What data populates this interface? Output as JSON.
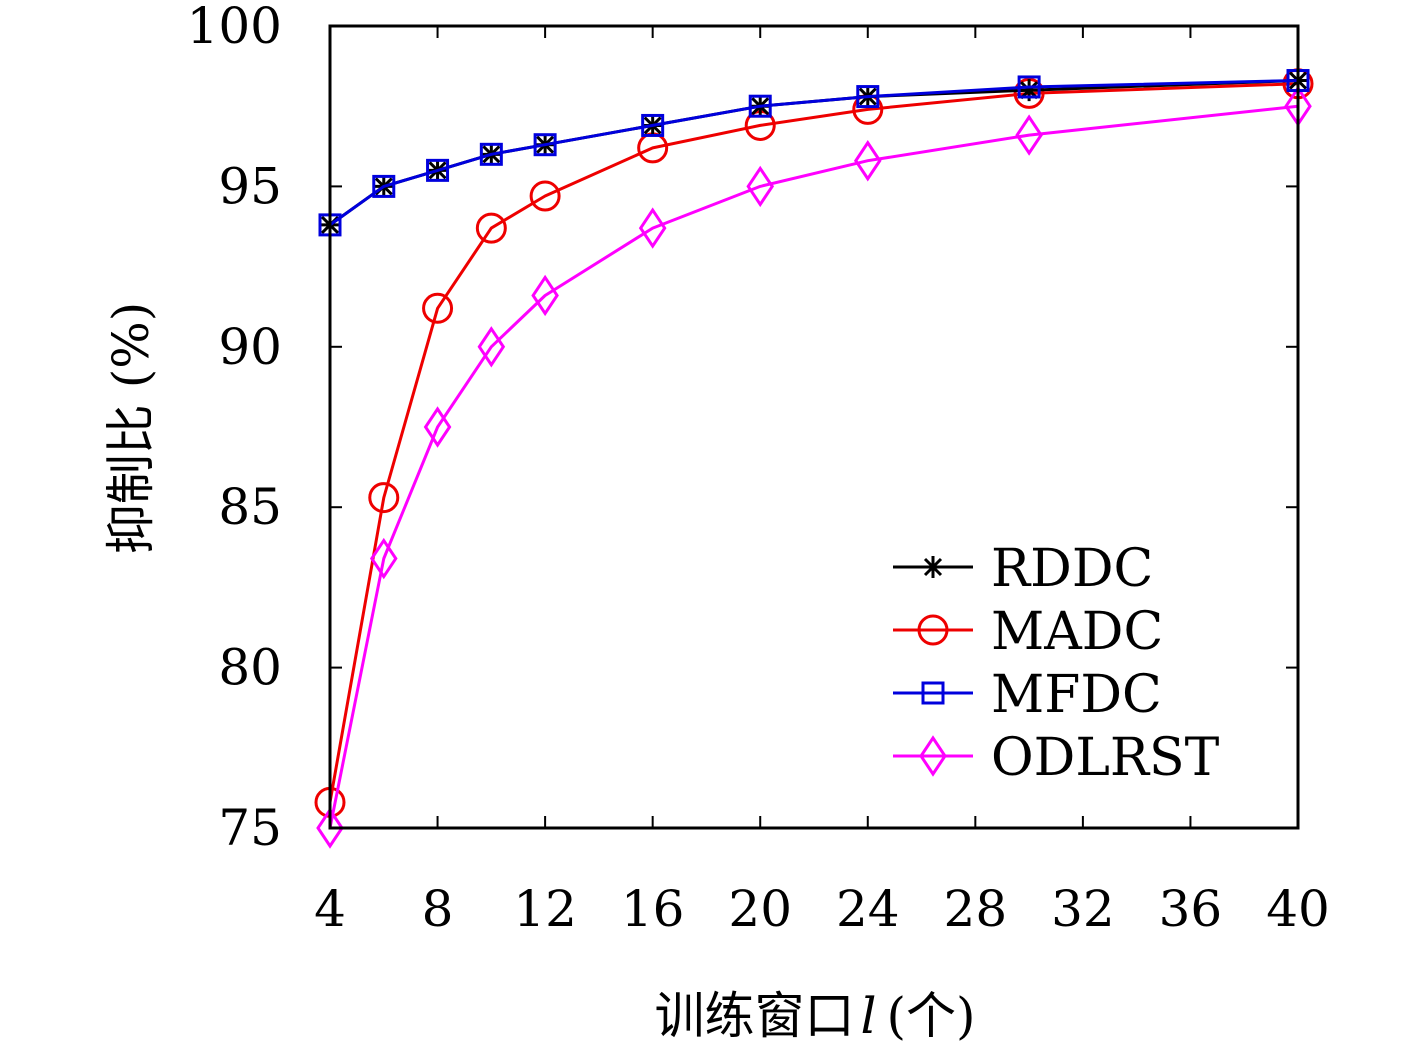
{
  "chart_data": {
    "type": "line",
    "xlabel": "训练窗口",
    "xlabel_var": "l",
    "xlabel_unit": "(个)",
    "ylabel": "抑制比 (%)",
    "xlim": [
      4,
      40
    ],
    "ylim": [
      75,
      100
    ],
    "xticks": [
      4,
      8,
      12,
      16,
      20,
      24,
      28,
      32,
      36,
      40
    ],
    "yticks": [
      75,
      80,
      85,
      90,
      95,
      100
    ],
    "x": [
      4,
      6,
      8,
      10,
      12,
      16,
      20,
      24,
      30,
      40
    ],
    "legend_position": "bottom-right",
    "grid": false,
    "series": [
      {
        "name": "RDDC",
        "color": "#000000",
        "marker": "asterisk",
        "values": [
          93.8,
          95.0,
          95.5,
          96.0,
          96.3,
          96.9,
          97.5,
          97.8,
          98.0,
          98.3
        ]
      },
      {
        "name": "MADC",
        "color": "#ee0000",
        "marker": "circle",
        "values": [
          75.8,
          85.3,
          91.2,
          93.7,
          94.7,
          96.2,
          96.9,
          97.4,
          97.9,
          98.2
        ]
      },
      {
        "name": "MFDC",
        "color": "#0000dd",
        "marker": "square",
        "values": [
          93.8,
          95.0,
          95.5,
          96.0,
          96.3,
          96.9,
          97.5,
          97.8,
          98.1,
          98.3
        ]
      },
      {
        "name": "ODLRST",
        "color": "#ff00ff",
        "marker": "diamond",
        "values": [
          75.0,
          83.4,
          87.5,
          90.0,
          91.6,
          93.7,
          95.0,
          95.8,
          96.6,
          97.5
        ]
      }
    ]
  }
}
